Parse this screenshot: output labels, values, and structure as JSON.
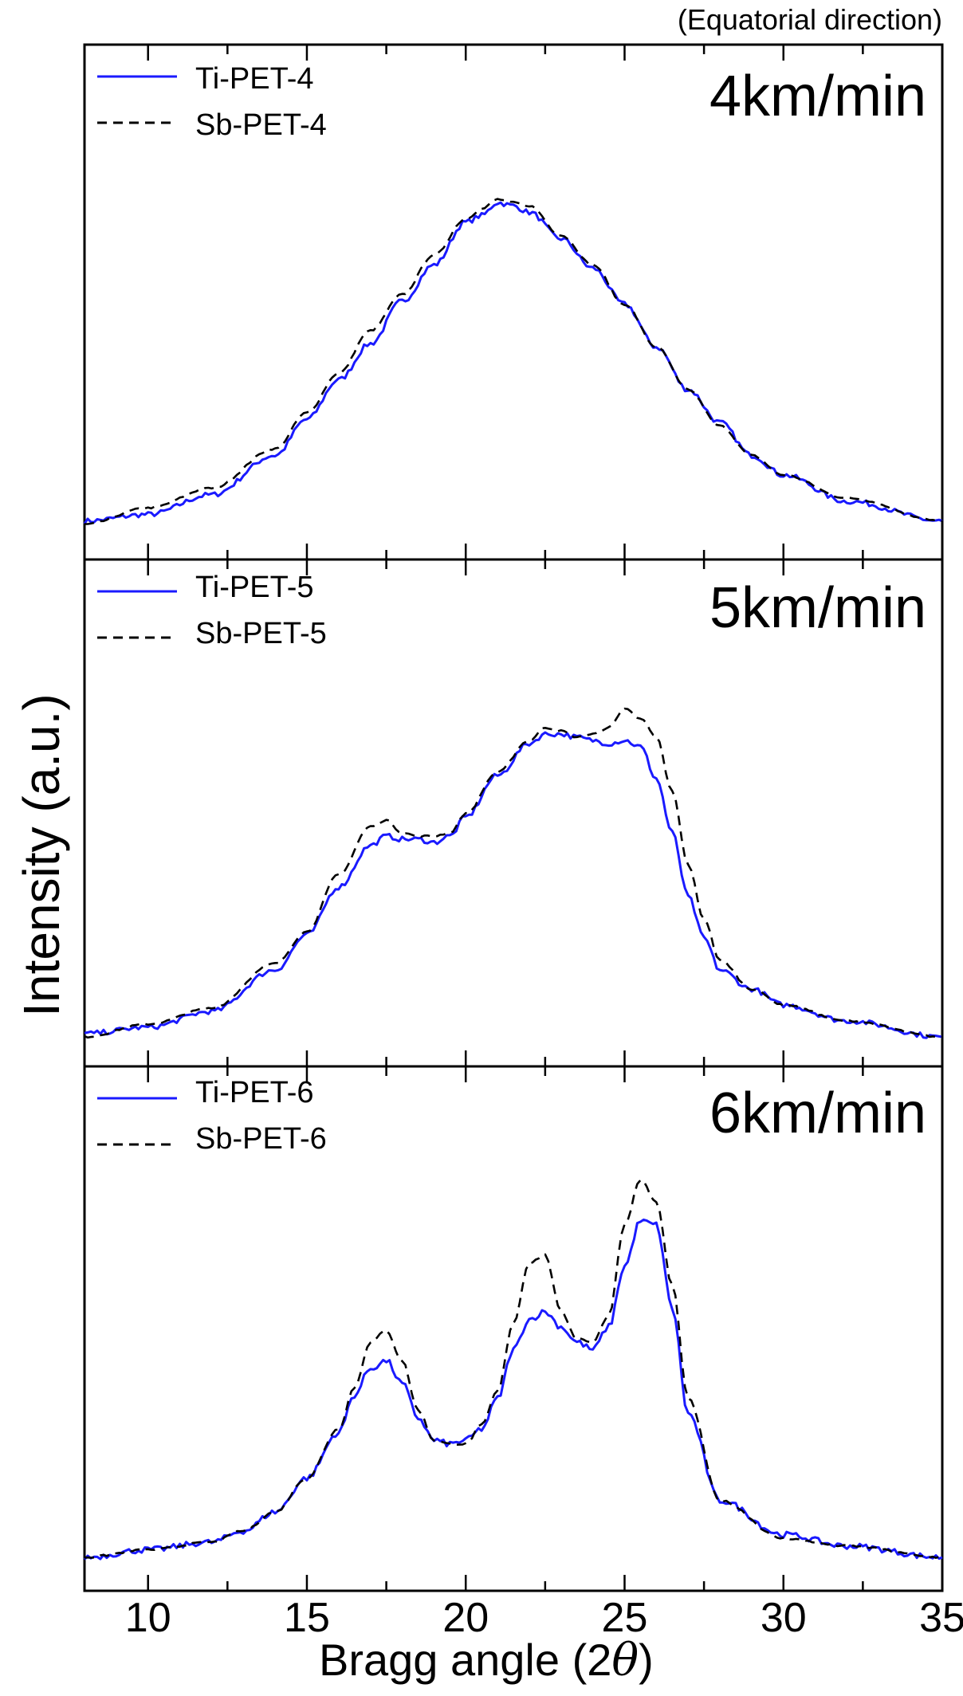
{
  "chart_data": {
    "type": "line",
    "note": "(Equatorial direction)",
    "ylabel": "Intensity (a.u.)",
    "xlabel_prefix": "Bragg angle (2",
    "xlabel_symbol": "θ",
    "xlabel_suffix": ")",
    "xlim": [
      8,
      35
    ],
    "x_ticks": [
      "10",
      "15",
      "20",
      "25",
      "30",
      "35"
    ],
    "x_tick_values": [
      10,
      15,
      20,
      25,
      30,
      35
    ],
    "colors": {
      "ti": "#1a1aff",
      "sb": "#000000"
    },
    "panels": [
      {
        "speed": "4km/min",
        "ylim": [
          0,
          100
        ],
        "series": [
          {
            "name": "Ti-PET-4",
            "style": "solid",
            "x": [
              8,
              10,
              12,
              14,
              15,
              16,
              17,
              18,
              19,
              20,
              20.5,
              21,
              21.5,
              22,
              23,
              24,
              25,
              26,
              27,
              28,
              29,
              30,
              32,
              35
            ],
            "y": [
              2,
              4,
              10,
              22,
              33,
              45,
              56,
              69,
              80,
              93,
              95,
              99,
              98,
              96,
              88,
              79,
              68,
              55,
              42,
              32,
              22,
              16,
              8,
              2
            ]
          },
          {
            "name": "Sb-PET-4",
            "style": "dashed",
            "x": [
              8,
              10,
              12,
              14,
              15,
              16,
              17,
              18,
              19,
              20,
              20.5,
              21,
              21.5,
              22,
              23,
              24,
              25,
              26,
              27,
              28,
              29,
              30,
              32,
              35
            ],
            "y": [
              1,
              6,
              12,
              24,
              35,
              47,
              60,
              71,
              83,
              94,
              97,
              100,
              99,
              98,
              89,
              80,
              68,
              55,
              42,
              31,
              22,
              16,
              9,
              2
            ]
          }
        ]
      },
      {
        "speed": "5km/min",
        "ylim": [
          0,
          100
        ],
        "series": [
          {
            "name": "Ti-PET-5",
            "style": "solid",
            "x": [
              8,
              10,
              12,
              14,
              15,
              16,
              17,
              17.5,
              18,
              18.5,
              19,
              19.5,
              20,
              21,
              22,
              22.5,
              23,
              23.5,
              24,
              24.5,
              25,
              25.5,
              26,
              26.5,
              27,
              27.5,
              28,
              29,
              30,
              32,
              35
            ],
            "y": [
              2,
              4,
              9,
              22,
              33,
              48,
              61,
              64,
              63,
              63,
              62,
              64,
              70,
              83,
              93,
              96,
              96,
              95,
              94,
              93,
              94,
              92,
              82,
              65,
              45,
              32,
              22,
              16,
              11,
              6,
              1
            ]
          },
          {
            "name": "Sb-PET-5",
            "style": "dashed",
            "x": [
              8,
              10,
              12,
              14,
              15,
              16,
              17,
              17.5,
              18,
              18.5,
              19,
              19.5,
              20,
              21,
              22,
              22.5,
              23,
              23.5,
              24,
              24.5,
              25,
              25.5,
              26,
              26.5,
              27,
              27.5,
              28,
              29,
              30,
              32,
              35
            ],
            "y": [
              1,
              5,
              10,
              24,
              34,
              52,
              67,
              69,
              65,
              64,
              64,
              65,
              71,
              84,
              94,
              98,
              97,
              95,
              96,
              98,
              104,
              101,
              95,
              78,
              55,
              38,
              25,
              16,
              11,
              6,
              1
            ]
          }
        ]
      },
      {
        "speed": "6km/min",
        "ylim": [
          0,
          100
        ],
        "series": [
          {
            "name": "Ti-PET-6",
            "style": "solid",
            "x": [
              8,
              10,
              12,
              13,
              14,
              15,
              16,
              16.5,
              17,
              17.5,
              18,
              18.5,
              19,
              19.5,
              20,
              20.5,
              21,
              21.5,
              22,
              22.5,
              23,
              23.5,
              24,
              24.5,
              25,
              25.5,
              26,
              26.5,
              27,
              28,
              30,
              32,
              35
            ],
            "y": [
              0,
              2,
              4,
              7,
              12,
              21,
              33,
              43,
              50,
              52,
              46,
              37,
              31,
              30,
              31,
              34,
              42,
              55,
              63,
              65,
              61,
              57,
              55,
              61,
              77,
              89,
              88,
              66,
              38,
              15,
              6,
              3,
              0
            ]
          },
          {
            "name": "Sb-PET-6",
            "style": "dashed",
            "x": [
              8,
              10,
              12,
              13,
              14,
              15,
              16,
              16.5,
              17,
              17.5,
              18,
              18.5,
              19,
              19.5,
              20,
              20.5,
              21,
              21.5,
              22,
              22.5,
              23,
              23.5,
              24,
              24.5,
              25,
              25.5,
              26,
              26.5,
              27,
              28,
              30,
              32,
              35
            ],
            "y": [
              0,
              2,
              4,
              7,
              12,
              21,
              34,
              45,
              57,
              60,
              52,
              39,
              31,
              30,
              30,
              35,
              44,
              62,
              78,
              80,
              65,
              58,
              57,
              64,
              88,
              100,
              94,
              72,
              42,
              15,
              5,
              3,
              0
            ]
          }
        ]
      }
    ]
  }
}
